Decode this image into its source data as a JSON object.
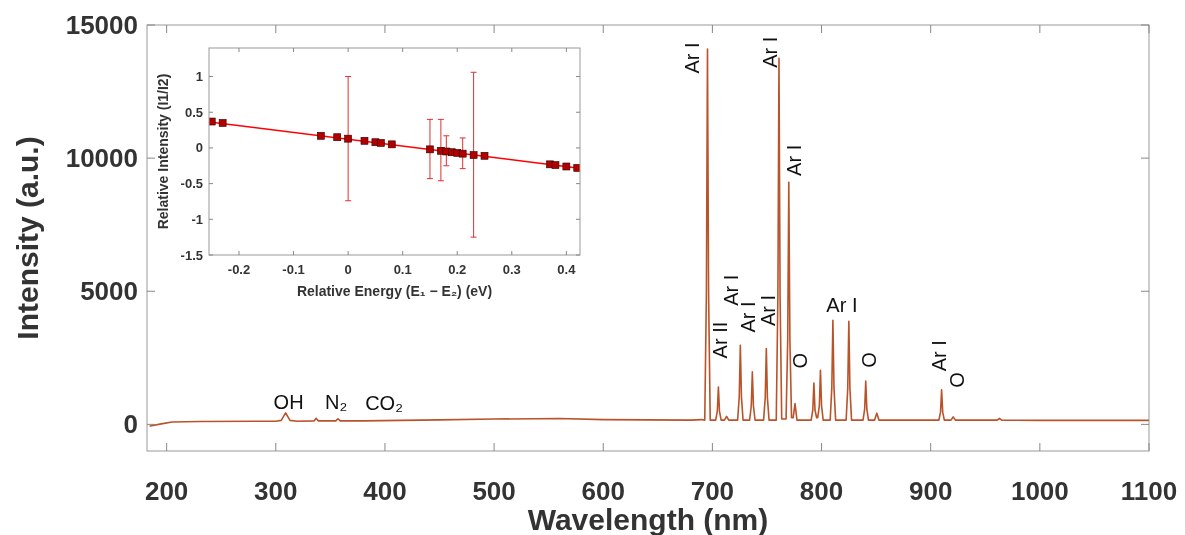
{
  "chart_data": [
    {
      "type": "line",
      "xlabel": "Wavelength (nm)",
      "ylabel": "Intensity (a.u.)",
      "x": [
        185,
        195,
        205,
        230,
        300,
        305,
        309,
        313,
        320,
        335,
        337,
        339,
        355,
        357,
        359,
        380,
        450,
        500,
        560,
        600,
        680,
        690,
        693,
        694.5,
        695.5,
        696.5,
        698,
        703,
        704.5,
        705.5,
        706.5,
        708,
        711,
        713,
        715,
        723.1,
        724.6,
        725.6,
        726.6,
        728.1,
        734.1,
        735.6,
        736.6,
        737.6,
        739.1,
        746.9,
        748.4,
        749.4,
        750.4,
        751.9,
        758.5,
        760,
        761,
        762,
        763.5,
        767.5,
        769,
        770,
        771,
        772.5,
        774,
        775.7,
        777.5,
        790.5,
        792,
        793,
        794,
        795.5,
        796.5,
        798,
        799,
        800,
        801.5,
        807.9,
        809.4,
        810.4,
        811.4,
        812.9,
        822.5,
        824,
        825,
        826,
        827.5,
        838,
        839.5,
        840.5,
        841.5,
        843,
        848.6,
        850.6,
        852.6,
        880,
        907.5,
        909,
        910,
        911,
        912.5,
        918.6,
        920.6,
        922.6,
        961,
        963,
        965,
        1000,
        1050,
        1100
      ],
      "series": [
        {
          "color": "#b9532a",
          "values": [
            -60,
            20,
            90,
            110,
            120,
            150,
            430,
            150,
            120,
            130,
            230,
            130,
            130,
            210,
            130,
            130,
            170,
            200,
            220,
            180,
            160,
            180,
            160,
            4940,
            14100,
            4940,
            160,
            160,
            490,
            1400,
            490,
            160,
            160,
            300,
            160,
            160,
            1040,
            2970,
            1040,
            160,
            160,
            690,
            1970,
            690,
            160,
            160,
            1000,
            2850,
            1000,
            160,
            160,
            4810,
            13750,
            4810,
            200,
            200,
            3180,
            9090,
            3180,
            250,
            250,
            780,
            160,
            160,
            540,
            1550,
            540,
            250,
            250,
            710,
            2030,
            710,
            160,
            160,
            1370,
            3910,
            1370,
            160,
            160,
            1350,
            3870,
            1350,
            160,
            160,
            570,
            1630,
            570,
            160,
            160,
            420,
            160,
            160,
            160,
            460,
            1300,
            460,
            160,
            160,
            280,
            160,
            160,
            220,
            160,
            150,
            150,
            150
          ]
        }
      ],
      "xlim": [
        182,
        1100
      ],
      "ylim": [
        -1000,
        15000
      ],
      "xticks": [
        200,
        300,
        400,
        500,
        600,
        700,
        800,
        900,
        1000,
        1100
      ],
      "yticks": [
        0,
        5000,
        10000,
        15000
      ],
      "annotations": [
        {
          "text": "OH",
          "x": 309,
          "y": 430
        },
        {
          "text": "N₂",
          "x": 337,
          "y": 230
        },
        {
          "text": "CO₂",
          "x": 357,
          "y": 210
        },
        {
          "text": "Ar I",
          "x": 810.4,
          "y": 3910
        },
        {
          "text": "Ar I",
          "x": 695.5,
          "y": 14100
        },
        {
          "text": "Ar II",
          "x": 705.5,
          "y": 1400
        },
        {
          "text": "Ar I",
          "x": 725.6,
          "y": 2970
        },
        {
          "text": "Ar I",
          "x": 736.6,
          "y": 1970
        },
        {
          "text": "Ar I",
          "x": 749.4,
          "y": 2850
        },
        {
          "text": "Ar I",
          "x": 761,
          "y": 13750
        },
        {
          "text": "Ar I",
          "x": 770,
          "y": 9090
        },
        {
          "text": "O",
          "x": 775.7,
          "y": 780
        },
        {
          "text": "O",
          "x": 840.5,
          "y": 1630
        },
        {
          "text": "Ar I",
          "x": 910,
          "y": 1300
        },
        {
          "text": "O",
          "x": 920.6,
          "y": 280
        }
      ]
    },
    {
      "type": "scatter",
      "xlabel": "Relative Energy (E₁ − E₂) (eV)",
      "ylabel": "Relative Intensity (I1/I2)",
      "series": [
        {
          "type": "line",
          "color": "#ff0000",
          "x": [
            -0.25,
            0.42
          ],
          "values": [
            0.36,
            -0.28
          ]
        },
        {
          "color": "#b00000",
          "marker": "square",
          "x": [
            -0.25,
            -0.23,
            -0.05,
            -0.02,
            0,
            0.03,
            0.05,
            0.06,
            0.08,
            0.15,
            0.17,
            0.18,
            0.19,
            0.2,
            0.21,
            0.23,
            0.25,
            0.37,
            0.38,
            0.4,
            0.42
          ],
          "values": [
            0.37,
            0.35,
            0.17,
            0.15,
            0.13,
            0.1,
            0.08,
            0.07,
            0.05,
            -0.02,
            -0.04,
            -0.05,
            -0.06,
            -0.07,
            -0.08,
            -0.1,
            -0.11,
            -0.23,
            -0.24,
            -0.26,
            -0.28
          ],
          "errors": [
            null,
            null,
            null,
            null,
            [
              -0.74,
              1.0
            ],
            null,
            null,
            null,
            null,
            [
              -0.43,
              0.4
            ],
            [
              -0.46,
              0.4
            ],
            [
              -0.25,
              0.17
            ],
            null,
            null,
            [
              -0.29,
              0.14
            ],
            [
              -1.25,
              1.06
            ],
            null,
            null,
            null,
            null,
            null
          ]
        }
      ],
      "xlim": [
        -0.255,
        0.425
      ],
      "ylim": [
        -1.5,
        1.4
      ],
      "xticks": [
        -0.2,
        -0.1,
        0,
        0.1,
        0.2,
        0.3,
        0.4
      ],
      "yticks": [
        -1.5,
        -1,
        -0.5,
        0,
        0.5,
        1
      ]
    }
  ]
}
